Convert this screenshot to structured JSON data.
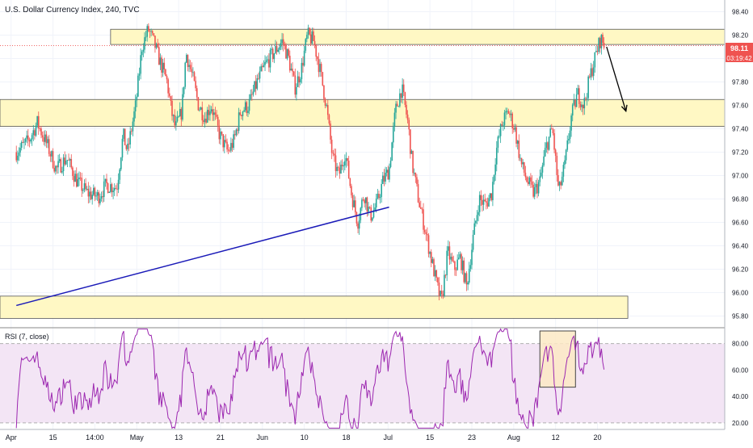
{
  "chart_data": [
    {
      "type": "candlestick",
      "title": "U.S. Dollar Currency Index, 240, TVC",
      "symbol": "U.S. Dollar Currency Index",
      "interval": "240",
      "source": "TVC",
      "ylim": [
        95.7,
        98.5
      ],
      "y_ticks": [
        "98.40",
        "98.20",
        "98.00",
        "97.80",
        "97.60",
        "97.40",
        "97.20",
        "97.00",
        "96.80",
        "96.60",
        "96.40",
        "96.20",
        "96.00",
        "95.80"
      ],
      "x_ticks": [
        "Apr",
        "15",
        "14:00",
        "May",
        "13",
        "21",
        "Jun",
        "10",
        "18",
        "Jul",
        "15",
        "23",
        "Aug",
        "12",
        "20"
      ],
      "last_price": "98.11",
      "countdown": "03:19:42",
      "colors": {
        "up": "#26a69a",
        "down": "#ef5350",
        "zone_fill": "#fff8c4",
        "zone_stroke": "#555555",
        "trendline": "#1a1ab8",
        "price_tag": "#ef5350"
      },
      "zones": [
        {
          "y_top": 98.25,
          "y_bottom": 98.12
        },
        {
          "y_top": 97.65,
          "y_bottom": 97.42
        },
        {
          "y_top": 95.97,
          "y_bottom": 95.78
        }
      ],
      "trendline": {
        "start": [
          -0.3,
          95.89
        ],
        "end": [
          17.5,
          96.73
        ]
      },
      "arrow": {
        "start": [
          27.5,
          98.1
        ],
        "end": [
          28.5,
          97.55
        ]
      },
      "anchors": [
        [
          -0.3,
          97.2
        ],
        [
          0.3,
          97.3
        ],
        [
          0.7,
          97.45
        ],
        [
          1.2,
          97.25
        ],
        [
          1.6,
          97.05
        ],
        [
          2.1,
          97.15
        ],
        [
          2.6,
          96.95
        ],
        [
          3.1,
          96.85
        ],
        [
          3.6,
          96.82
        ],
        [
          4.0,
          96.92
        ],
        [
          4.5,
          96.9
        ],
        [
          4.8,
          97.35
        ],
        [
          5.0,
          97.2
        ],
        [
          5.4,
          97.6
        ],
        [
          5.7,
          98.1
        ],
        [
          6.0,
          98.25
        ],
        [
          6.3,
          98.12
        ],
        [
          6.6,
          97.95
        ],
        [
          6.9,
          97.8
        ],
        [
          7.1,
          97.55
        ],
        [
          7.3,
          97.4
        ],
        [
          7.6,
          97.55
        ],
        [
          7.8,
          98.05
        ],
        [
          8.1,
          97.85
        ],
        [
          8.4,
          97.6
        ],
        [
          8.7,
          97.5
        ],
        [
          9.0,
          97.6
        ],
        [
          9.4,
          97.35
        ],
        [
          9.8,
          97.2
        ],
        [
          10.1,
          97.3
        ],
        [
          10.4,
          97.55
        ],
        [
          10.8,
          97.6
        ],
        [
          11.2,
          97.8
        ],
        [
          11.6,
          97.95
        ],
        [
          12.0,
          98.05
        ],
        [
          12.4,
          98.15
        ],
        [
          12.7,
          98.0
        ],
        [
          13.0,
          97.75
        ],
        [
          13.3,
          97.9
        ],
        [
          13.6,
          98.2
        ],
        [
          13.9,
          98.15
        ],
        [
          14.2,
          97.9
        ],
        [
          14.5,
          97.6
        ],
        [
          14.8,
          97.15
        ],
        [
          15.1,
          97.0
        ],
        [
          15.4,
          97.2
        ],
        [
          15.7,
          96.85
        ],
        [
          16.0,
          96.6
        ],
        [
          16.3,
          96.85
        ],
        [
          16.6,
          96.65
        ],
        [
          16.9,
          96.75
        ],
        [
          17.2,
          96.95
        ],
        [
          17.5,
          97.05
        ],
        [
          17.8,
          97.55
        ],
        [
          18.1,
          97.75
        ],
        [
          18.4,
          97.45
        ],
        [
          18.6,
          97.1
        ],
        [
          18.9,
          96.8
        ],
        [
          19.2,
          96.55
        ],
        [
          19.5,
          96.3
        ],
        [
          19.8,
          96.05
        ],
        [
          20.0,
          95.92
        ],
        [
          20.3,
          96.35
        ],
        [
          20.6,
          96.2
        ],
        [
          20.9,
          96.3
        ],
        [
          21.2,
          96.05
        ],
        [
          21.5,
          96.45
        ],
        [
          21.8,
          96.8
        ],
        [
          22.1,
          96.75
        ],
        [
          22.4,
          96.85
        ],
        [
          22.6,
          97.2
        ],
        [
          22.9,
          97.45
        ],
        [
          23.2,
          97.55
        ],
        [
          23.5,
          97.4
        ],
        [
          23.8,
          97.1
        ],
        [
          24.1,
          96.95
        ],
        [
          24.4,
          96.85
        ],
        [
          24.7,
          96.95
        ],
        [
          25.0,
          97.25
        ],
        [
          25.3,
          97.4
        ],
        [
          25.6,
          96.85
        ],
        [
          25.9,
          97.1
        ],
        [
          26.2,
          97.5
        ],
        [
          26.5,
          97.7
        ],
        [
          26.8,
          97.6
        ],
        [
          27.1,
          97.85
        ],
        [
          27.4,
          98.05
        ],
        [
          27.6,
          98.17
        ],
        [
          27.8,
          98.11
        ]
      ]
    },
    {
      "type": "line",
      "title": "RSI (7, close)",
      "ylim": [
        15,
        92
      ],
      "y_ticks": [
        "80.00",
        "60.00",
        "40.00",
        "20.00"
      ],
      "band": [
        20,
        80
      ],
      "colors": {
        "line": "#9c27b0",
        "band_fill": "#f3e5f5",
        "band_stroke": "#b0b0b0",
        "highlight_fill": "#fbe9c4"
      },
      "highlight": {
        "x_start": 24.7,
        "x_end": 26.4,
        "y_bottom": 47,
        "y_top": 93
      }
    }
  ]
}
